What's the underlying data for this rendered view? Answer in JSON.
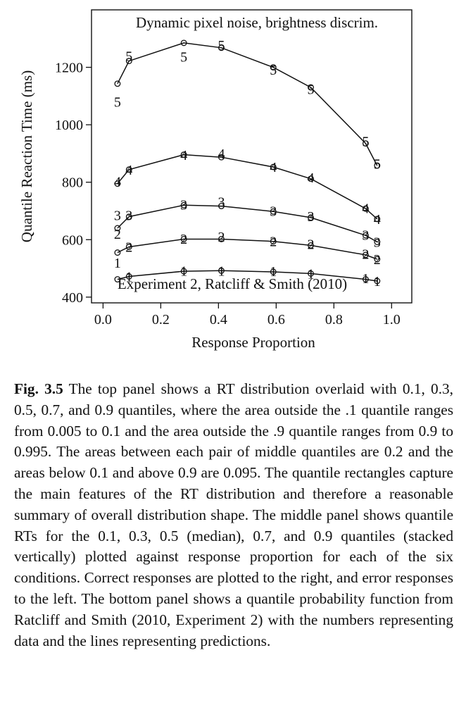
{
  "chart_data": {
    "type": "line",
    "title": "Dynamic pixel noise, brightness discrim.",
    "annotation": "Experiment 2, Ratcliff & Smith (2010)",
    "xlabel": "Response Proportion",
    "ylabel": "Quantile Reaction Time (ms)",
    "xlim": [
      -0.04,
      1.07
    ],
    "ylim": [
      380,
      1400
    ],
    "xticks": [
      "0.0",
      "0.2",
      "0.4",
      "0.6",
      "0.8",
      "1.0"
    ],
    "yticks": [
      "400",
      "600",
      "800",
      "1000",
      "1200"
    ],
    "x": [
      0.05,
      0.09,
      0.28,
      0.41,
      0.59,
      0.72,
      0.91,
      0.95
    ],
    "grid": false,
    "series": [
      {
        "name": "1",
        "predicted": [
          462,
          472,
          490,
          492,
          488,
          482,
          462,
          456
        ],
        "data": [
          [
            0.05,
            520
          ],
          [
            0.09,
            472
          ],
          [
            0.28,
            492
          ],
          [
            0.41,
            492
          ],
          [
            0.59,
            490
          ],
          [
            0.72,
            482
          ],
          [
            0.91,
            466
          ],
          [
            0.95,
            456
          ]
        ]
      },
      {
        "name": "2",
        "predicted": [
          555,
          575,
          602,
          602,
          594,
          580,
          547,
          532
        ],
        "data": [
          [
            0.05,
            620
          ],
          [
            0.09,
            575
          ],
          [
            0.28,
            603
          ],
          [
            0.41,
            610
          ],
          [
            0.59,
            594
          ],
          [
            0.72,
            585
          ],
          [
            0.91,
            550
          ],
          [
            0.95,
            532
          ]
        ]
      },
      {
        "name": "3",
        "predicted": [
          640,
          680,
          720,
          717,
          698,
          677,
          615,
          592
        ],
        "data": [
          [
            0.05,
            685
          ],
          [
            0.09,
            685
          ],
          [
            0.28,
            722
          ],
          [
            0.41,
            732
          ],
          [
            0.59,
            700
          ],
          [
            0.72,
            682
          ],
          [
            0.91,
            617
          ],
          [
            0.95,
            592
          ]
        ]
      },
      {
        "name": "4",
        "predicted": [
          795,
          844,
          896,
          887,
          853,
          812,
          708,
          672
        ],
        "data": [
          [
            0.05,
            803
          ],
          [
            0.09,
            844
          ],
          [
            0.28,
            895
          ],
          [
            0.41,
            900
          ],
          [
            0.59,
            853
          ],
          [
            0.72,
            817
          ],
          [
            0.91,
            710
          ],
          [
            0.95,
            672
          ]
        ]
      },
      {
        "name": "5",
        "predicted": [
          1143,
          1222,
          1285,
          1268,
          1200,
          1130,
          935,
          858
        ],
        "data": [
          [
            0.05,
            1080
          ],
          [
            0.09,
            1240
          ],
          [
            0.28,
            1237
          ],
          [
            0.41,
            1278
          ],
          [
            0.59,
            1192
          ],
          [
            0.72,
            1124
          ],
          [
            0.91,
            943
          ],
          [
            0.95,
            864
          ]
        ]
      }
    ]
  },
  "caption": {
    "label": "Fig. 3.5",
    "lines": [
      "The top panel shows a RT distribution overlaid with",
      "0.1, 0.3, 0.5, 0.7, and 0.9 quantiles, where the area outside the",
      ".1 quantile ranges from 0.005 to 0.1 and the area outside the .9",
      "quantile ranges from 0.9 to 0.995. The areas between each pair",
      "of middle quantiles are 0.2 and the areas below 0.1 and above",
      "0.9 are 0.095. The quantile rectangles capture the main features",
      "of the RT distribution and therefore a reasonable summary of",
      "overall distribution shape. The middle panel shows quantile RTs",
      "for the 0.1, 0.3, 0.5 (median), 0.7, and 0.9 quantiles (stacked",
      "vertically) plotted against response proportion for each of the",
      "six conditions. Correct responses are plotted to the right, and",
      "error responses to the left. The bottom panel shows a quantile",
      "probability function from Ratcliff and Smith (2010, Experiment",
      "2) with the numbers representing data and the lines representing",
      "predictions."
    ]
  }
}
